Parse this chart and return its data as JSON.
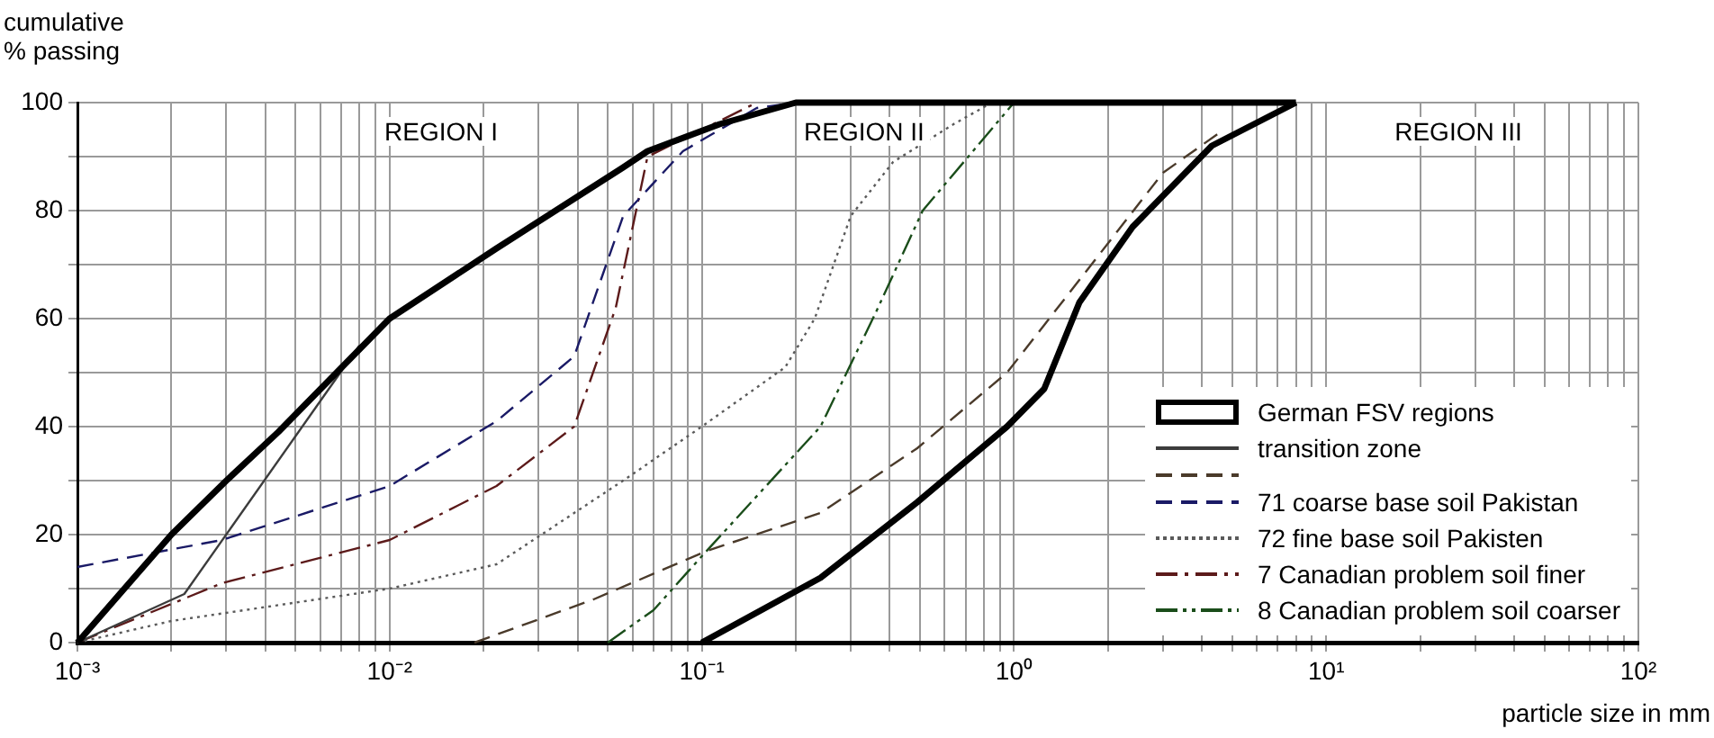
{
  "chart_data": {
    "type": "line",
    "xlabel": "particle size in mm",
    "ylabel": "cumulative\n% passing",
    "log": "x",
    "grid": true,
    "legend": "bottom right",
    "marker": "none",
    "xlim": [
      0.001,
      100
    ],
    "ylim": [
      0,
      100
    ],
    "xticks": [
      {
        "value": 0.001,
        "label": "10⁻³"
      },
      {
        "value": 0.002,
        "label": null
      },
      {
        "value": 0.003,
        "label": null
      },
      {
        "value": 0.004,
        "label": null
      },
      {
        "value": 0.005,
        "label": null
      },
      {
        "value": 0.006,
        "label": null
      },
      {
        "value": 0.007,
        "label": null
      },
      {
        "value": 0.008,
        "label": null
      },
      {
        "value": 0.009,
        "label": null
      },
      {
        "value": 0.01,
        "label": "10⁻²"
      },
      {
        "value": 0.02,
        "label": null
      },
      {
        "value": 0.03,
        "label": null
      },
      {
        "value": 0.04,
        "label": null
      },
      {
        "value": 0.05,
        "label": null
      },
      {
        "value": 0.06,
        "label": null
      },
      {
        "value": 0.07,
        "label": null
      },
      {
        "value": 0.08,
        "label": null
      },
      {
        "value": 0.09,
        "label": null
      },
      {
        "value": 0.1,
        "label": "10⁻¹"
      },
      {
        "value": 0.2,
        "label": null
      },
      {
        "value": 0.3,
        "label": null
      },
      {
        "value": 0.4,
        "label": null
      },
      {
        "value": 0.5,
        "label": null
      },
      {
        "value": 0.6,
        "label": null
      },
      {
        "value": 0.7,
        "label": null
      },
      {
        "value": 0.8,
        "label": null
      },
      {
        "value": 0.9,
        "label": null
      },
      {
        "value": 1,
        "label": "10⁰"
      },
      {
        "value": 2,
        "label": null
      },
      {
        "value": 3,
        "label": null
      },
      {
        "value": 4,
        "label": null
      },
      {
        "value": 5,
        "label": null
      },
      {
        "value": 6,
        "label": null
      },
      {
        "value": 7,
        "label": null
      },
      {
        "value": 8,
        "label": null
      },
      {
        "value": 9,
        "label": null
      },
      {
        "value": 10,
        "label": "10¹"
      },
      {
        "value": 20,
        "label": null
      },
      {
        "value": 30,
        "label": null
      },
      {
        "value": 40,
        "label": null
      },
      {
        "value": 50,
        "label": null
      },
      {
        "value": 60,
        "label": null
      },
      {
        "value": 70,
        "label": null
      },
      {
        "value": 80,
        "label": null
      },
      {
        "value": 90,
        "label": null
      },
      {
        "value": 100,
        "label": "10²"
      }
    ],
    "yticks": [
      0,
      {
        "value": 10,
        "label": null
      },
      20,
      {
        "value": 30,
        "label": null
      },
      40,
      {
        "value": 50,
        "label": null
      },
      60,
      {
        "value": 70,
        "label": null
      },
      80,
      {
        "value": 90,
        "label": null
      },
      100
    ],
    "annotations": [
      "REGION I",
      "REGION II",
      "REGION III"
    ],
    "series": [
      {
        "name": "German FSV regions",
        "color": "#000000",
        "line_style": "solid",
        "x": [
          0.001,
          0.002,
          0.003,
          0.0044,
          0.01,
          0.022,
          0.056,
          0.067,
          0.114,
          0.2,
          8
        ],
        "values": [
          0,
          20,
          30,
          39,
          60,
          73,
          88,
          91,
          96,
          100,
          100
        ]
      },
      {
        "color": "#000000",
        "line_style": "solid",
        "x": [
          0.1,
          0.24,
          0.49,
          0.95,
          1.25,
          1.62,
          2.4,
          4.3,
          8
        ],
        "values": [
          0,
          12,
          26,
          40,
          47,
          63,
          77,
          92,
          100
        ]
      },
      {
        "name": "transition zone",
        "color": "#3c3c3c",
        "line_style": "solid",
        "x": [
          0.001,
          0.0022,
          0.008
        ],
        "values": [
          0,
          9,
          55
        ]
      },
      {
        "color": "#4a3a2a",
        "line_style": "dashed",
        "x": [
          0.0187,
          0.045,
          0.104,
          0.24,
          0.49,
          0.95,
          1.77,
          3,
          4.7
        ],
        "values": [
          0,
          8,
          17,
          24,
          36,
          50,
          70,
          87,
          95
        ]
      },
      {
        "name": "71 coarse base soil Pakistan",
        "color": "#1a1a66",
        "line_style": "dashed",
        "x": [
          0.001,
          0.0029,
          0.01,
          0.022,
          0.039,
          0.056,
          0.087,
          0.15,
          0.2
        ],
        "values": [
          14,
          19,
          29,
          41,
          53,
          79,
          91,
          99,
          100
        ]
      },
      {
        "name": "72 fine base soil Pakisten",
        "color": "#5a5a5a",
        "line_style": "dotted",
        "x": [
          0.001,
          0.002,
          0.01,
          0.022,
          0.056,
          0.1,
          0.185,
          0.23,
          0.3,
          0.41,
          0.64,
          0.85
        ],
        "values": [
          0,
          4,
          10,
          14.5,
          30,
          40,
          51,
          60,
          79,
          89,
          96,
          100
        ]
      },
      {
        "name": "7 Canadian problem soil finer",
        "color": "#5c1a1a",
        "line_style": "dashdot",
        "x": [
          0.001,
          0.0029,
          0.01,
          0.022,
          0.039,
          0.053,
          0.067,
          0.15
        ],
        "values": [
          0,
          11,
          19,
          29,
          40,
          62,
          90,
          100
        ]
      },
      {
        "name": "8 Canadian problem soil coarser",
        "color": "#1a4d1a",
        "line_style": "dashdotdot",
        "x": [
          0.05,
          0.07,
          0.1,
          0.24,
          0.36,
          0.51,
          1
        ],
        "values": [
          0,
          6,
          16,
          40,
          61,
          80,
          100
        ]
      }
    ]
  }
}
